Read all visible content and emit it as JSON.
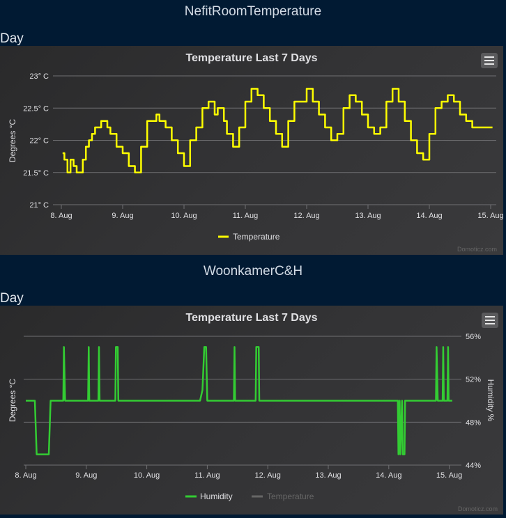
{
  "devices": [
    {
      "name": "NefitRoomTemperature",
      "period": "Day",
      "menu_icon": "hamburger-icon",
      "chart": {
        "title": "Temperature Last 7 Days",
        "ylabel_left": "Degrees °C",
        "ylabel_right": "",
        "credit": "Domoticz.com"
      }
    },
    {
      "name": "WoonkamerC&H",
      "period": "Day",
      "menu_icon": "hamburger-icon",
      "chart": {
        "title": "Temperature Last 7 Days",
        "ylabel_left": "Degrees °C",
        "ylabel_right": "Humidity %",
        "credit": "Domoticz.com"
      }
    }
  ],
  "chart_data": [
    {
      "type": "line",
      "title": "Temperature Last 7 Days",
      "xlabel": "",
      "ylabel": "Degrees °C",
      "x_ticks": [
        "8. Aug",
        "9. Aug",
        "10. Aug",
        "11. Aug",
        "12. Aug",
        "13. Aug",
        "14. Aug",
        "15. Aug"
      ],
      "y_ticks": [
        "21° C",
        "21.5° C",
        "22° C",
        "22.5° C",
        "23° C"
      ],
      "ylim": [
        21,
        23
      ],
      "grid": true,
      "legend": "bottom-center",
      "series": [
        {
          "name": "Temperature",
          "color": "#ffff00",
          "x_days": [
            0.02,
            0.05,
            0.1,
            0.15,
            0.2,
            0.25,
            0.3,
            0.35,
            0.4,
            0.45,
            0.5,
            0.55,
            0.6,
            0.65,
            0.7,
            0.75,
            0.8,
            0.9,
            1.0,
            1.1,
            1.2,
            1.3,
            1.4,
            1.5,
            1.55,
            1.6,
            1.7,
            1.8,
            1.9,
            2.0,
            2.1,
            2.2,
            2.3,
            2.4,
            2.5,
            2.55,
            2.6,
            2.65,
            2.7,
            2.8,
            2.9,
            3.0,
            3.1,
            3.2,
            3.3,
            3.4,
            3.5,
            3.6,
            3.7,
            3.8,
            3.9,
            4.0,
            4.1,
            4.2,
            4.3,
            4.4,
            4.5,
            4.6,
            4.7,
            4.8,
            4.9,
            5.0,
            5.1,
            5.2,
            5.3,
            5.4,
            5.5,
            5.6,
            5.7,
            5.8,
            5.9,
            6.0,
            6.1,
            6.2,
            6.3,
            6.4,
            6.5,
            6.6,
            6.7,
            6.8,
            6.9,
            7.0,
            7.03
          ],
          "values": [
            21.8,
            21.7,
            21.5,
            21.7,
            21.6,
            21.5,
            21.5,
            21.7,
            21.9,
            22.0,
            22.1,
            22.2,
            22.2,
            22.3,
            22.3,
            22.2,
            22.1,
            21.9,
            21.8,
            21.6,
            21.5,
            21.9,
            22.3,
            22.3,
            22.4,
            22.3,
            22.2,
            22.0,
            21.8,
            21.6,
            22.0,
            22.2,
            22.5,
            22.6,
            22.4,
            22.5,
            22.5,
            22.3,
            22.1,
            21.9,
            22.2,
            22.6,
            22.8,
            22.7,
            22.5,
            22.3,
            22.1,
            21.9,
            22.3,
            22.6,
            22.6,
            22.8,
            22.6,
            22.4,
            22.2,
            22.0,
            22.1,
            22.5,
            22.7,
            22.6,
            22.4,
            22.2,
            22.1,
            22.2,
            22.6,
            22.8,
            22.6,
            22.3,
            22.0,
            21.8,
            21.7,
            22.1,
            22.5,
            22.6,
            22.7,
            22.6,
            22.4,
            22.3,
            22.2,
            22.2,
            22.2,
            22.2,
            22.2
          ]
        }
      ]
    },
    {
      "type": "line",
      "title": "Temperature Last 7 Days",
      "xlabel": "",
      "ylabel": "Degrees °C",
      "ylabel_right": "Humidity %",
      "x_ticks": [
        "8. Aug",
        "9. Aug",
        "10. Aug",
        "11. Aug",
        "12. Aug",
        "13. Aug",
        "14. Aug",
        "15. Aug"
      ],
      "y_ticks_right": [
        "44%",
        "48%",
        "52%",
        "56%"
      ],
      "ylim": [
        44,
        56
      ],
      "grid": true,
      "legend": "bottom-center",
      "series": [
        {
          "name": "Humidity",
          "color": "#33cc33",
          "axis": "right",
          "x_days": [
            0.0,
            0.15,
            0.18,
            0.38,
            0.41,
            0.62,
            0.63,
            0.65,
            1.03,
            1.04,
            1.05,
            1.2,
            1.21,
            1.22,
            1.48,
            1.49,
            1.52,
            1.53,
            2.88,
            2.92,
            2.95,
            2.98,
            3.0,
            3.03,
            3.08,
            3.44,
            3.45,
            3.46,
            3.8,
            3.81,
            3.85,
            3.86,
            6.15,
            6.16,
            6.18,
            6.19,
            6.22,
            6.23,
            6.26,
            6.27,
            6.78,
            6.79,
            6.81,
            6.89,
            6.9,
            6.91,
            6.97,
            6.98,
            6.99,
            7.05
          ],
          "values": [
            50.0,
            50.0,
            45.0,
            45.0,
            50.0,
            50.0,
            55.0,
            50.0,
            50.0,
            55.0,
            50.0,
            50.0,
            55.0,
            50.0,
            50.0,
            55.0,
            55.0,
            50.0,
            50.0,
            51.0,
            55.0,
            55.0,
            50.0,
            50.0,
            50.0,
            50.0,
            55.0,
            50.0,
            50.0,
            55.0,
            55.0,
            50.0,
            50.0,
            45.0,
            50.0,
            45.0,
            50.0,
            45.0,
            45.0,
            50.0,
            50.0,
            55.0,
            50.0,
            50.0,
            55.0,
            50.0,
            50.0,
            55.0,
            50.0,
            50.0
          ]
        },
        {
          "name": "Temperature",
          "color": "#666666",
          "hidden": true,
          "values": []
        }
      ]
    }
  ]
}
